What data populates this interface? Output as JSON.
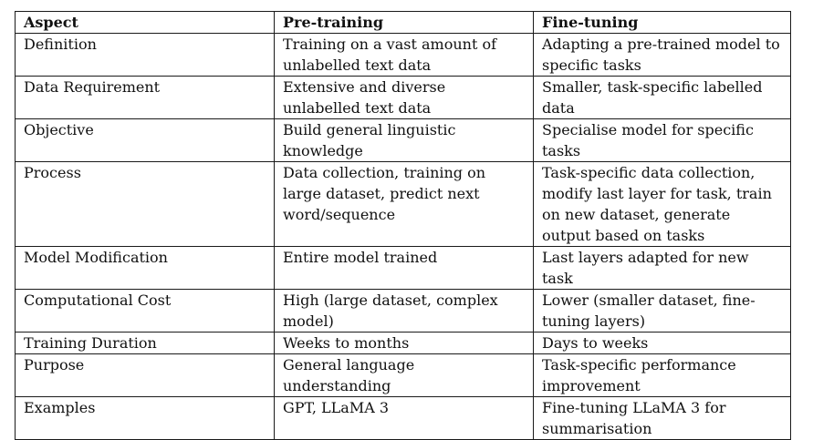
{
  "table": {
    "headers": [
      "Aspect",
      "Pre-training",
      "Fine-tuning"
    ],
    "rows": [
      [
        "Definition",
        "Training on a vast amount of unlabelled text data",
        "Adapting a pre-trained model to specific tasks"
      ],
      [
        "Data Requirement",
        "Extensive and diverse unlabelled text data",
        "Smaller, task-specific labelled data"
      ],
      [
        "Objective",
        "Build general linguistic knowledge",
        "Specialise model for specific tasks"
      ],
      [
        "Process",
        "Data collection, training on large dataset, predict next word/sequence",
        "Task-specific data collection, modify last layer for task, train on new dataset, generate output based on tasks"
      ],
      [
        "Model Modification",
        "Entire model trained",
        "Last layers adapted for new task"
      ],
      [
        "Computational Cost",
        "High (large dataset, complex model)",
        "Lower (smaller dataset, fine-tuning layers)"
      ],
      [
        "Training Duration",
        "Weeks to months",
        "Days to weeks"
      ],
      [
        "Purpose",
        "General language understanding",
        "Task-specific performance improvement"
      ],
      [
        "Examples",
        "GPT, LLaMA 3",
        "Fine-tuning LLaMA 3 for summarisation"
      ]
    ]
  }
}
